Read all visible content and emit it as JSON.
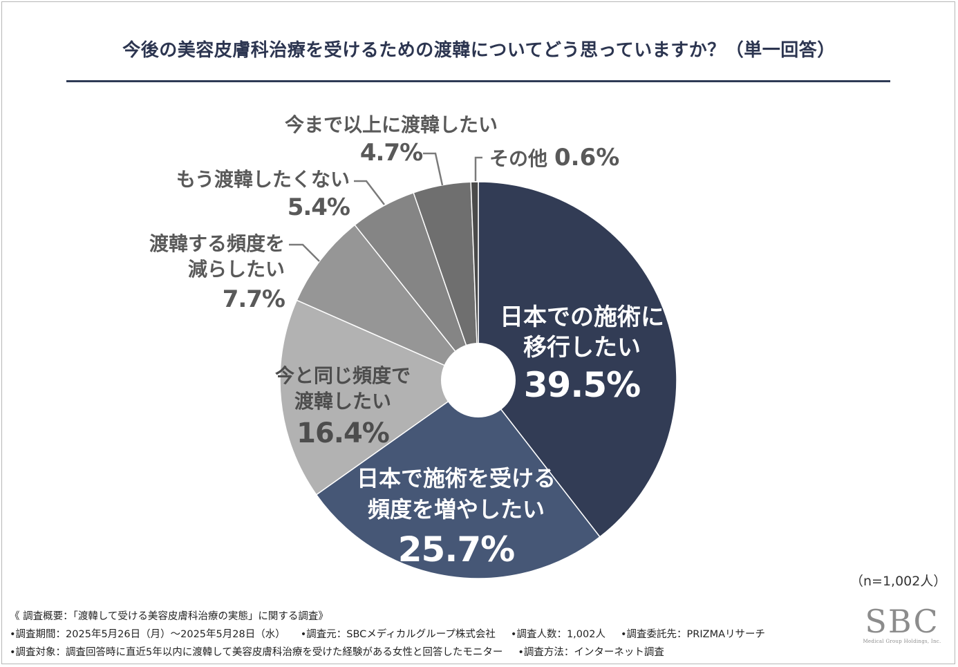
{
  "title": "今後の美容皮膚科治療を受けるための渡韓についてどう思っていますか？（単一回答）",
  "sample_note": "（n=1,002人）",
  "chart_data": {
    "type": "pie",
    "variant": "donut",
    "title": "今後の美容皮膚科治療を受けるための渡韓についてどう思っていますか？（単一回答）",
    "order": "clockwise from top",
    "slices": [
      {
        "label_lines": [
          "日本での施術に",
          "移行したい"
        ],
        "value": 39.5,
        "value_label": "39.5%",
        "color": "#323c55",
        "text_color": "#ffffff",
        "label_position": "inside"
      },
      {
        "label_lines": [
          "日本で施術を受ける",
          "頻度を増やしたい"
        ],
        "value": 25.7,
        "value_label": "25.7%",
        "color": "#465776",
        "text_color": "#ffffff",
        "label_position": "inside"
      },
      {
        "label_lines": [
          "今と同じ頻度で",
          "渡韓したい"
        ],
        "value": 16.4,
        "value_label": "16.4%",
        "color": "#b2b2b2",
        "text_color": "#4d4d4d",
        "label_position": "inside"
      },
      {
        "label_lines": [
          "渡韓する頻度を",
          "減らしたい"
        ],
        "value": 7.7,
        "value_label": "7.7%",
        "color": "#969696",
        "text_color": "#595959",
        "label_position": "outside"
      },
      {
        "label_lines": [
          "もう渡韓したくない"
        ],
        "value": 5.4,
        "value_label": "5.4%",
        "color": "#858585",
        "text_color": "#595959",
        "label_position": "outside"
      },
      {
        "label_lines": [
          "今まで以上に渡韓したい"
        ],
        "value": 4.7,
        "value_label": "4.7%",
        "color": "#6f6f6f",
        "text_color": "#595959",
        "label_position": "outside"
      },
      {
        "label_lines": [
          "その他"
        ],
        "value": 0.6,
        "value_label": "0.6%",
        "color": "#4a4a4a",
        "text_color": "#595959",
        "label_position": "outside"
      }
    ]
  },
  "footer": {
    "line1": "《 調査概要：「渡韓して受ける美容皮膚科治療の実態」に関する調査》",
    "line2_items": [
      "•調査期間：2025年5月26日（月）～2025年5月28日（水）",
      "•調査元：SBCメディカルグループ株式会社",
      "•調査人数：1,002人",
      "•調査委託先：PRIZMAリサーチ"
    ],
    "line3_items": [
      "•調査対象：調査回答時に直近5年以内に渡韓して美容皮膚科治療を受けた経験がある女性と回答したモニター",
      "•調査方法：インターネット調査"
    ]
  },
  "logo": {
    "main": "SBC",
    "sub": "Medical Group Holdings, Inc."
  }
}
